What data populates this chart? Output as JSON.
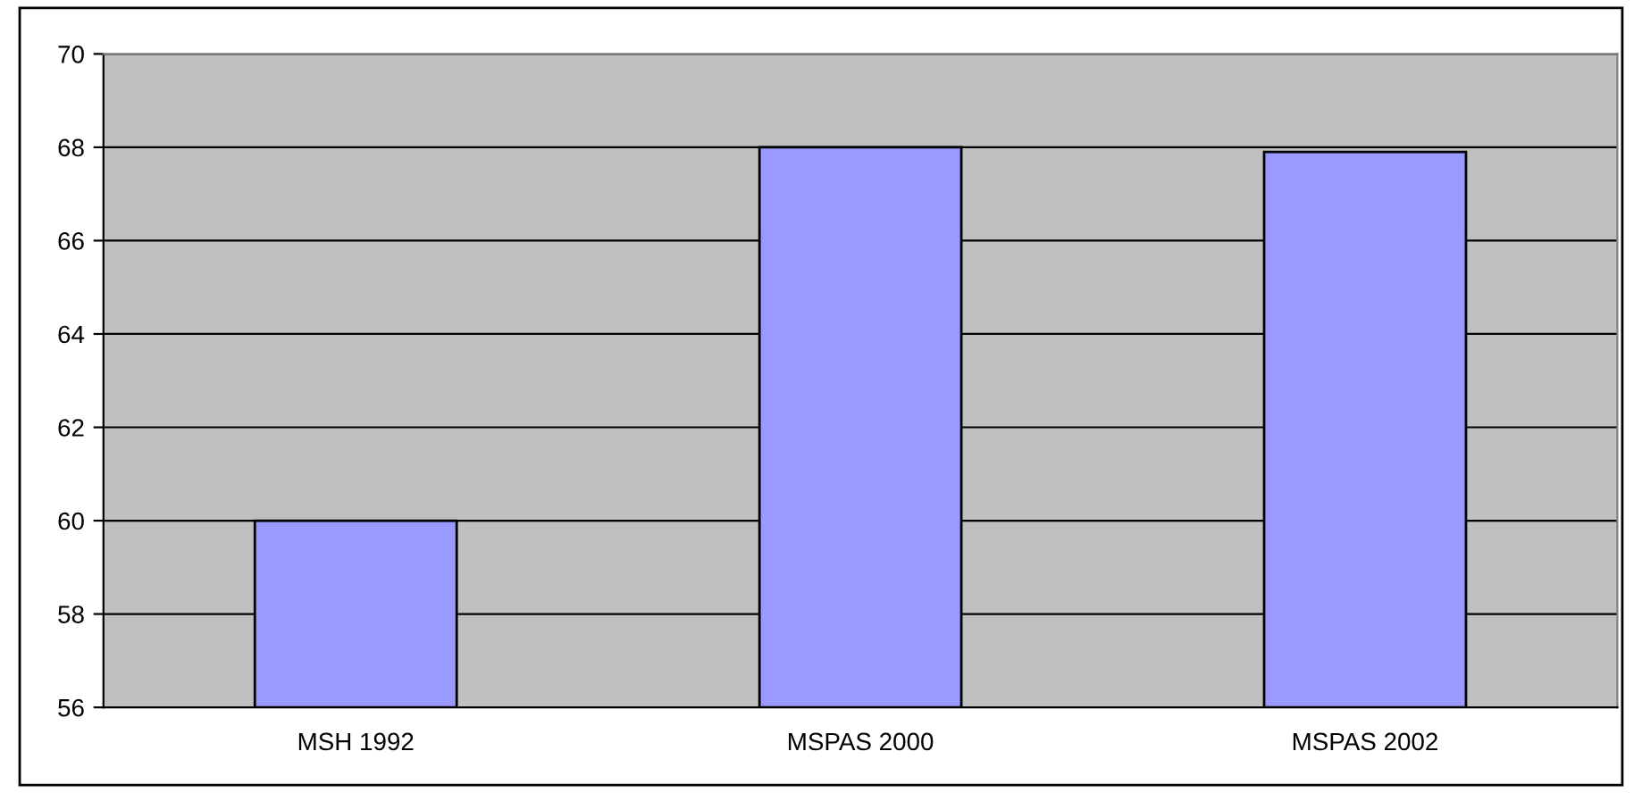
{
  "chart_data": {
    "type": "bar",
    "categories": [
      "MSH 1992",
      "MSPAS 2000",
      "MSPAS 2002"
    ],
    "values": [
      60,
      68,
      67.9
    ],
    "color": "#9999ff",
    "ylim": [
      56,
      70
    ],
    "yticks": [
      56,
      58,
      60,
      62,
      64,
      66,
      68,
      70
    ],
    "grid": "y",
    "legend": false
  }
}
